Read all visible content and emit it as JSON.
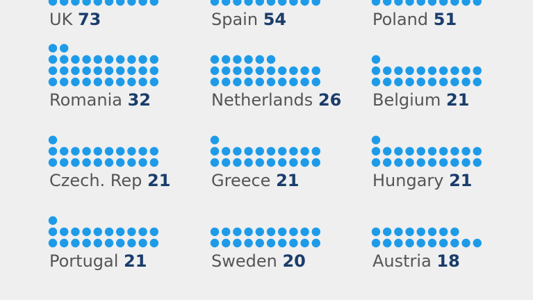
{
  "chart_data": {
    "type": "unit-dot-pictogram",
    "dot_color": "#1e9be8",
    "label_color": "#555555",
    "value_color": "#1a3d6b",
    "items": [
      {
        "country": "UK",
        "value": 73
      },
      {
        "country": "Spain",
        "value": 54
      },
      {
        "country": "Poland",
        "value": 51
      },
      {
        "country": "Romania",
        "value": 32
      },
      {
        "country": "Netherlands",
        "value": 26
      },
      {
        "country": "Belgium",
        "value": 21
      },
      {
        "country": "Czech. Rep",
        "value": 21
      },
      {
        "country": "Greece",
        "value": 21
      },
      {
        "country": "Hungary",
        "value": 21
      },
      {
        "country": "Portugal",
        "value": 21
      },
      {
        "country": "Sweden",
        "value": 20
      },
      {
        "country": "Austria",
        "value": 18
      }
    ]
  }
}
